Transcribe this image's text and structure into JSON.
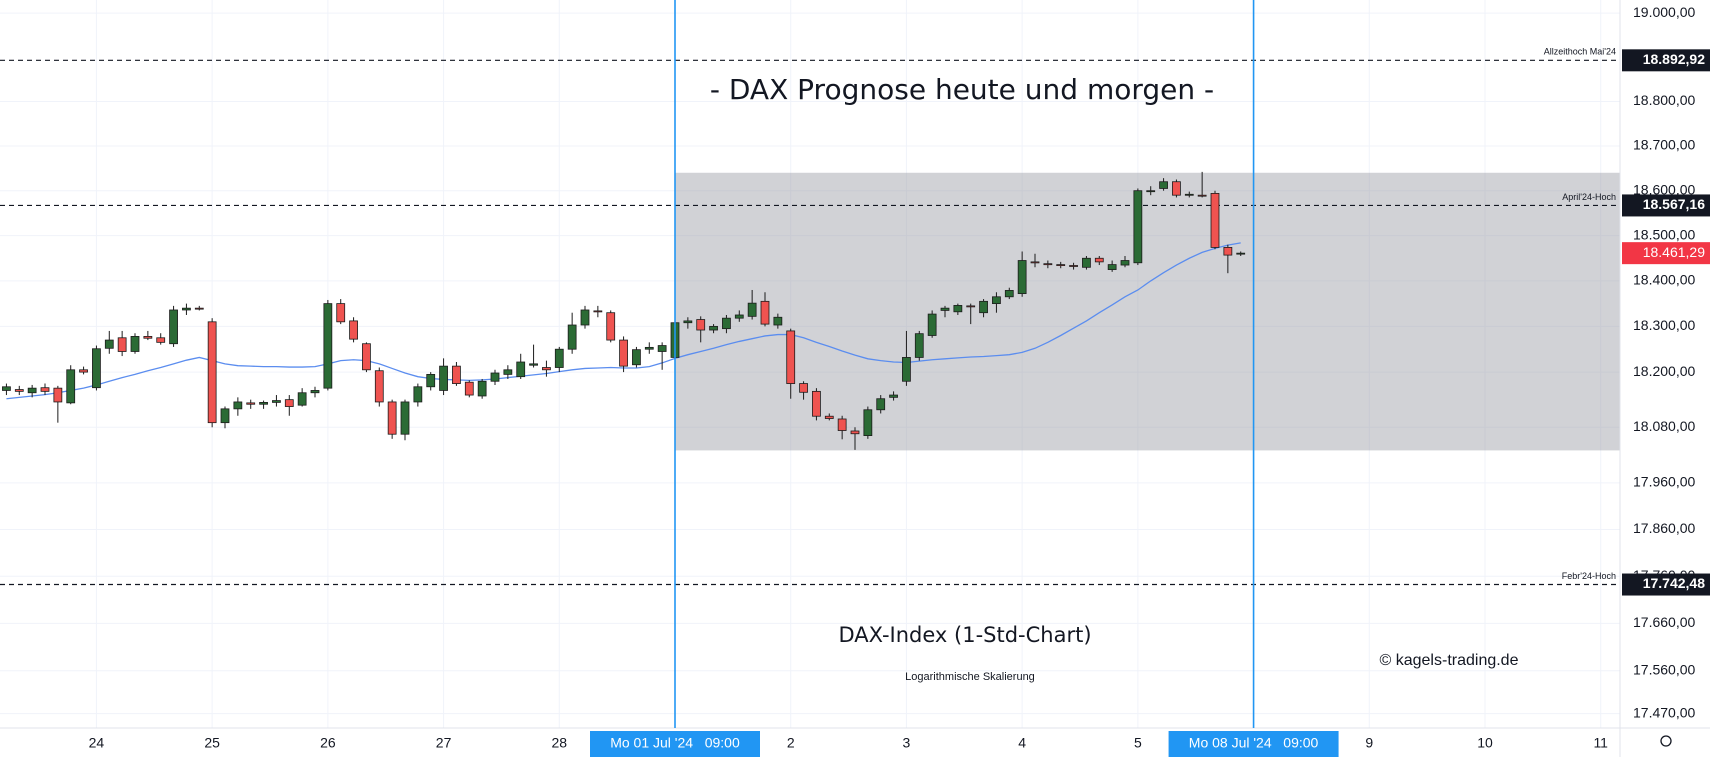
{
  "chart_data": {
    "type": "candlestick",
    "title": "- DAX Prognose heute und morgen -",
    "subtitle": "DAX-Index (1-Std-Chart)",
    "scale_note": "Logarithmische Skalierung",
    "credit": "© kagels-trading.de",
    "log_scale": true,
    "grid": true,
    "up_color": "#2b6b35",
    "down_color": "#ef5350",
    "border_color": "#1c1c1c",
    "ylim": [
      17440,
      19030
    ],
    "yticks": [
      {
        "value": 19000,
        "label": "19.000,00"
      },
      {
        "value": 18800,
        "label": "18.800,00"
      },
      {
        "value": 18700,
        "label": "18.700,00"
      },
      {
        "value": 18600,
        "label": "18.600,00"
      },
      {
        "value": 18500,
        "label": "18.500,00"
      },
      {
        "value": 18400,
        "label": "18.400,00"
      },
      {
        "value": 18300,
        "label": "18.300,00"
      },
      {
        "value": 18200,
        "label": "18.200,00"
      },
      {
        "value": 18080,
        "label": "18.080,00"
      },
      {
        "value": 17960,
        "label": "17.960,00"
      },
      {
        "value": 17860,
        "label": "17.860,00"
      },
      {
        "value": 17760,
        "label": "17.760,00"
      },
      {
        "value": 17660,
        "label": "17.660,00"
      },
      {
        "value": 17560,
        "label": "17.560,00"
      },
      {
        "value": 17470,
        "label": "17.470,00"
      }
    ],
    "categories": [
      null,
      null,
      null,
      null,
      null,
      null,
      null,
      "24",
      null,
      null,
      null,
      null,
      null,
      null,
      null,
      null,
      "25",
      null,
      null,
      null,
      null,
      null,
      null,
      null,
      null,
      "26",
      null,
      null,
      null,
      null,
      null,
      null,
      null,
      null,
      "27",
      null,
      null,
      null,
      null,
      null,
      null,
      null,
      null,
      "28",
      null,
      null,
      null,
      null,
      null,
      null,
      null,
      null,
      "Mo 01 Jul '24   09:00",
      null,
      null,
      null,
      null,
      null,
      null,
      null,
      null,
      "2",
      null,
      null,
      null,
      null,
      null,
      null,
      null,
      null,
      "3",
      null,
      null,
      null,
      null,
      null,
      null,
      null,
      null,
      "4",
      null,
      null,
      null,
      null,
      null,
      null,
      null,
      null,
      "5",
      null,
      null,
      null,
      null,
      null,
      null,
      null,
      null,
      "Mo 08 Jul '24   09:00",
      null,
      null,
      null,
      null,
      null,
      null,
      null,
      null,
      "9",
      null,
      null,
      null,
      null,
      null,
      null,
      null,
      null,
      "10",
      null,
      null,
      null,
      null,
      null,
      null,
      null,
      null,
      "11",
      null
    ],
    "highlight_categories": [
      "Mo 01 Jul '24   09:00",
      "Mo 08 Jul '24   09:00"
    ],
    "highlight_color": "#2196f3",
    "open": [
      18160,
      18162,
      18155,
      18166,
      18165,
      18133,
      18205,
      18166,
      18252,
      18275,
      18245,
      18278,
      18275,
      18262,
      18336,
      18340,
      18310,
      18090,
      18120,
      18133,
      18130,
      18134,
      18140,
      18128,
      18155,
      18165,
      18350,
      18312,
      18262,
      18203,
      18135,
      18065,
      18135,
      18168,
      18160,
      18213,
      18178,
      18148,
      18180,
      18195,
      18190,
      18215,
      18210,
      18210,
      18250,
      18303,
      18334,
      18330,
      18270,
      18216,
      18250,
      18245,
      18232,
      18308,
      18315,
      18292,
      18295,
      18318,
      18322,
      18355,
      18303,
      18290,
      18175,
      18158,
      18104,
      18098,
      18072,
      18062,
      18118,
      18145,
      18180,
      18232,
      18280,
      18335,
      18332,
      18345,
      18330,
      18350,
      18365,
      18372,
      18442,
      18438,
      18436,
      18434,
      18430,
      18450,
      18425,
      18435,
      18440,
      18598,
      18605,
      18620,
      18590,
      18590,
      18594,
      18474,
      18460,
      null,
      null,
      null,
      null,
      null,
      null,
      null,
      null,
      null,
      null,
      null,
      null,
      null,
      null,
      null,
      null,
      null,
      null,
      null,
      null,
      null,
      null,
      null,
      null,
      null,
      null,
      null,
      null,
      null
    ],
    "high": [
      18175,
      18170,
      18172,
      18175,
      18170,
      18215,
      18212,
      18258,
      18290,
      18290,
      18285,
      18290,
      18285,
      18345,
      18350,
      18345,
      18318,
      18125,
      18145,
      18140,
      18138,
      18150,
      18150,
      18165,
      18168,
      18358,
      18360,
      18320,
      18265,
      18210,
      18140,
      18140,
      18175,
      18200,
      18230,
      18222,
      18182,
      18185,
      18205,
      18215,
      18240,
      18260,
      18225,
      18255,
      18330,
      18345,
      18345,
      18335,
      18278,
      18255,
      18265,
      18265,
      18460,
      18320,
      18322,
      18305,
      18325,
      18335,
      18380,
      18375,
      18328,
      18295,
      18180,
      18165,
      18110,
      18105,
      18080,
      18125,
      18150,
      18158,
      18290,
      18290,
      18335,
      18345,
      18350,
      18350,
      18360,
      18375,
      18385,
      18465,
      18460,
      18445,
      18442,
      18440,
      18455,
      18455,
      18445,
      18455,
      18605,
      18610,
      18628,
      18625,
      18598,
      18642,
      18600,
      18480,
      18465,
      null,
      null,
      null,
      null,
      null,
      null,
      null,
      null,
      null,
      null,
      null,
      null,
      null,
      null,
      null,
      null,
      null,
      null,
      null,
      null,
      null,
      null,
      null,
      null,
      null,
      null,
      null,
      null,
      null
    ],
    "low": [
      18150,
      18150,
      18145,
      18150,
      18090,
      18130,
      18195,
      18160,
      18240,
      18235,
      18240,
      18270,
      18260,
      18255,
      18325,
      18335,
      18080,
      18078,
      18105,
      18120,
      18120,
      18125,
      18105,
      18125,
      18145,
      18160,
      18305,
      18265,
      18200,
      18125,
      18055,
      18052,
      18125,
      18160,
      18150,
      18170,
      18145,
      18142,
      18172,
      18185,
      18185,
      18210,
      18190,
      18200,
      18240,
      18295,
      18320,
      18265,
      18200,
      18210,
      18240,
      18205,
      18225,
      18295,
      18265,
      18285,
      18285,
      18310,
      18315,
      18300,
      18295,
      18142,
      18140,
      18095,
      18095,
      18054,
      18031,
      18055,
      18110,
      18138,
      18170,
      18225,
      18275,
      18320,
      18325,
      18305,
      18320,
      18330,
      18360,
      18365,
      18430,
      18428,
      18428,
      18425,
      18425,
      18435,
      18420,
      18430,
      18435,
      18590,
      18600,
      18585,
      18585,
      18585,
      18470,
      18417,
      18455,
      null,
      null,
      null,
      null,
      null,
      null,
      null,
      null,
      null,
      null,
      null,
      null,
      null,
      null,
      null,
      null,
      null,
      null,
      null,
      null,
      null,
      null,
      null,
      null,
      null,
      null,
      null,
      null,
      null
    ],
    "close": [
      18168,
      18158,
      18165,
      18158,
      18135,
      18205,
      18200,
      18251,
      18270,
      18245,
      18278,
      18274,
      18265,
      18336,
      18340,
      18338,
      18090,
      18120,
      18135,
      18130,
      18134,
      18138,
      18125,
      18155,
      18160,
      18350,
      18310,
      18272,
      18205,
      18135,
      18065,
      18135,
      18168,
      18195,
      18213,
      18175,
      18150,
      18180,
      18198,
      18205,
      18222,
      18218,
      18205,
      18250,
      18303,
      18336,
      18332,
      18270,
      18213,
      18249,
      18254,
      18258,
      18308,
      18312,
      18292,
      18300,
      18318,
      18325,
      18351,
      18305,
      18320,
      18175,
      18156,
      18104,
      18099,
      18073,
      18066,
      18118,
      18142,
      18150,
      18232,
      18284,
      18327,
      18340,
      18346,
      18343,
      18355,
      18365,
      18379,
      18445,
      18440,
      18436,
      18434,
      18432,
      18450,
      18442,
      18436,
      18445,
      18600,
      18600,
      18620,
      18590,
      18592,
      18588,
      18474,
      18457,
      18461.29,
      null,
      null,
      null,
      null,
      null,
      null,
      null,
      null,
      null,
      null,
      null,
      null,
      null,
      null,
      null,
      null,
      null,
      null,
      null,
      null,
      null,
      null,
      null,
      null,
      null,
      null,
      null,
      null,
      null
    ],
    "ma": {
      "color": "#5b8def",
      "values": [
        18142,
        18145,
        18148,
        18151,
        18155,
        18160,
        18165,
        18172,
        18180,
        18188,
        18195,
        18203,
        18210,
        18218,
        18226,
        18232,
        18225,
        18218,
        18214,
        18213,
        18212,
        18212,
        18211,
        18211,
        18212,
        18218,
        18225,
        18227,
        18225,
        18218,
        18208,
        18198,
        18190,
        18186,
        18184,
        18183,
        18182,
        18183,
        18185,
        18188,
        18191,
        18194,
        18197,
        18201,
        18205,
        18208,
        18209,
        18210,
        18209,
        18209,
        18212,
        18220,
        18230,
        18238,
        18245,
        18252,
        18260,
        18267,
        18273,
        18279,
        18282,
        18282,
        18275,
        18265,
        18256,
        18246,
        18237,
        18229,
        18225,
        18222,
        18221,
        18224,
        18227,
        18229,
        18231,
        18233,
        18234,
        18236,
        18238,
        18243,
        18252,
        18265,
        18280,
        18296,
        18312,
        18330,
        18347,
        18365,
        18380,
        18400,
        18418,
        18435,
        18450,
        18463,
        18472,
        18479,
        18484,
        null,
        null,
        null,
        null,
        null,
        null,
        null,
        null,
        null,
        null,
        null,
        null,
        null,
        null,
        null,
        null,
        null,
        null,
        null,
        null,
        null,
        null,
        null,
        null,
        null,
        null,
        null,
        null,
        null
      ]
    },
    "range_box": {
      "low": 18030,
      "high": 18640,
      "color": "#9a9ba5"
    },
    "levels": [
      {
        "value": 18892.92,
        "label": "18.892,92",
        "note": "Allzeithoch Mai'24"
      },
      {
        "value": 18567.16,
        "label": "18.567,16",
        "note": "April'24-Hoch"
      },
      {
        "value": 17742.48,
        "label": "17.742,48",
        "note": "Febr'24-Hoch"
      }
    ],
    "last": {
      "value": 18461.29,
      "label": "18.461,29",
      "color": "#f23645"
    }
  }
}
